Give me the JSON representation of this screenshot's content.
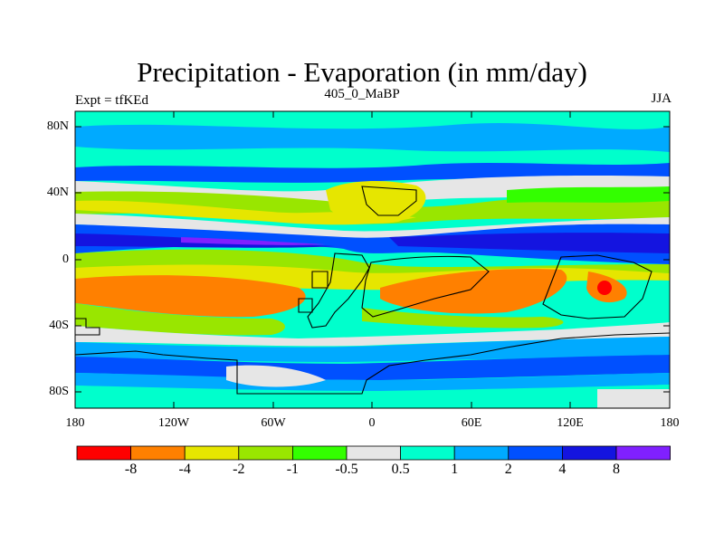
{
  "title": "Precipitation - Evaporation (in mm/day)",
  "subtitle_left": "Expt = tfKEd",
  "subtitle_center": "405_0_MaBP",
  "subtitle_right": "JJA",
  "lat_labels": [
    "80N",
    "40N",
    "0",
    "40S",
    "80S"
  ],
  "lon_labels": [
    "180",
    "120W",
    "60W",
    "0",
    "60E",
    "120E",
    "180"
  ],
  "colorbar": {
    "colors": [
      "#ff0000",
      "#ff8000",
      "#e6e600",
      "#99e600",
      "#33ff00",
      "#e6e6e6",
      "#00ffcc",
      "#00aaff",
      "#0050ff",
      "#1414e0",
      "#8020ff"
    ],
    "labels": [
      "-8",
      "-4",
      "-2",
      "-1",
      "-0.5",
      "0.5",
      "1",
      "2",
      "4",
      "8"
    ]
  }
}
